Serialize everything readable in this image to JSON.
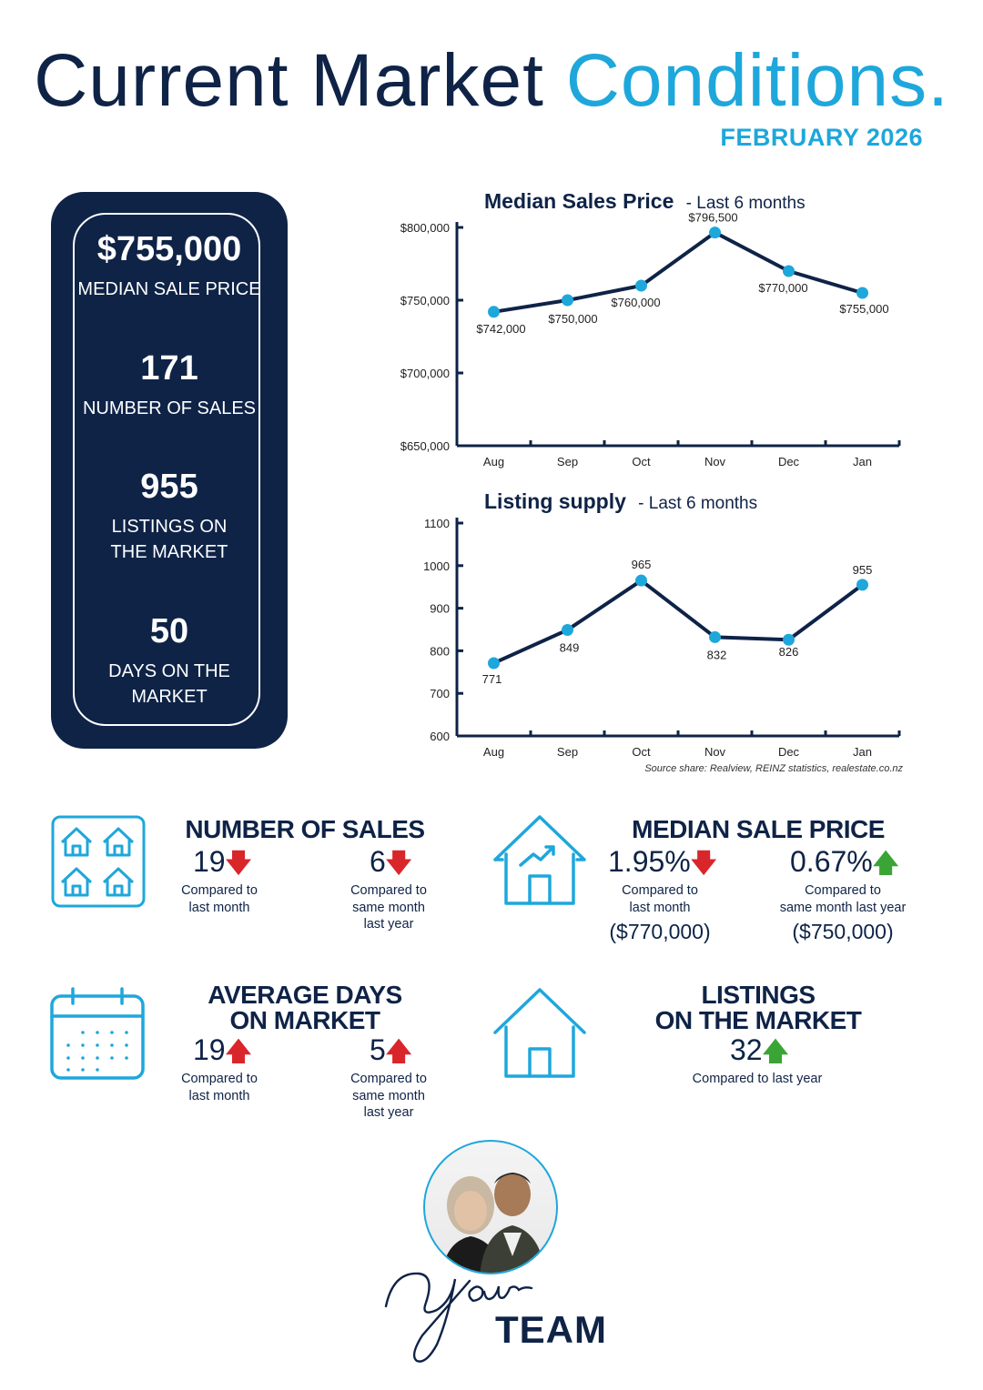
{
  "header": {
    "title_part1": "Current Market",
    "title_part2": "Conditions.",
    "subtitle": "FEBRUARY 2026"
  },
  "summary": {
    "median_price_value": "$755,000",
    "median_price_label": "MEDIAN SALE PRICE",
    "sales_value": "171",
    "sales_label": "NUMBER OF SALES",
    "listings_value": "955",
    "listings_label": "LISTINGS ON THE MARKET",
    "days_value": "50",
    "days_label": "DAYS ON THE MARKET"
  },
  "chart_data": [
    {
      "type": "line",
      "title": "Median Sales Price",
      "subtitle": "- Last 6 months",
      "categories": [
        "Aug",
        "Sep",
        "Oct",
        "Nov",
        "Dec",
        "Jan"
      ],
      "values": [
        742000,
        750000,
        760000,
        796500,
        770000,
        755000
      ],
      "data_labels": [
        "$742,000",
        "$750,000",
        "$760,000",
        "$796,500",
        "$770,000",
        "$755,000"
      ],
      "ylim": [
        650000,
        800000
      ],
      "yticks": [
        650000,
        700000,
        750000,
        800000
      ],
      "ytick_labels": [
        "$650,000",
        "$700,000",
        "$750,000",
        "$800,000"
      ],
      "grid": false,
      "color": "#1ea7db",
      "line_color": "#0f2347"
    },
    {
      "type": "line",
      "title": "Listing supply",
      "subtitle": "- Last 6 months",
      "categories": [
        "Aug",
        "Sep",
        "Oct",
        "Nov",
        "Dec",
        "Jan"
      ],
      "values": [
        771,
        849,
        965,
        832,
        826,
        955
      ],
      "data_labels": [
        "771",
        "849",
        "965",
        "832",
        "826",
        "955"
      ],
      "ylim": [
        600,
        1100
      ],
      "yticks": [
        600,
        700,
        800,
        900,
        1000,
        1100
      ],
      "ytick_labels": [
        "600",
        "700",
        "800",
        "900",
        "1000",
        "1100"
      ],
      "grid": false,
      "color": "#1ea7db",
      "line_color": "#0f2347"
    }
  ],
  "source": "Source share: Realview, REINZ statistics, realestate.co.nz",
  "blocks": {
    "sales": {
      "title": "NUMBER OF SALES",
      "month_value": "19",
      "month_arrow": "down",
      "month_caption": [
        "Compared to",
        "last month"
      ],
      "year_value": "6",
      "year_arrow": "down",
      "year_caption": [
        "Compared to",
        "same month",
        "last year"
      ],
      "icon": "houses-grid-icon"
    },
    "price": {
      "title": "MEDIAN SALE PRICE",
      "month_value": "1.95%",
      "month_arrow": "down",
      "month_caption": [
        "Compared to",
        "last month"
      ],
      "month_prev": "($770,000)",
      "year_value": "0.67%",
      "year_arrow": "up",
      "year_caption": [
        "Compared to",
        "same month last year"
      ],
      "year_prev": "($750,000)",
      "icon": "house-trend-icon"
    },
    "days": {
      "title_line1": "AVERAGE DAYS",
      "title_line2": "ON MARKET",
      "month_value": "19",
      "month_arrow": "up",
      "month_caption": [
        "Compared to",
        "last month"
      ],
      "year_value": "5",
      "year_arrow": "up",
      "year_caption": [
        "Compared to",
        "same month",
        "last year"
      ],
      "icon": "calendar-icon"
    },
    "listings": {
      "title_line1": "LISTINGS",
      "title_line2": "ON THE MARKET",
      "year_value": "32",
      "year_arrow": "up",
      "year_caption": "Compared to last year",
      "icon": "house-icon"
    }
  },
  "footer": {
    "script_word": "Your",
    "team_word": "TEAM"
  },
  "colors": {
    "navy": "#0f2347",
    "accent": "#1ea7db",
    "down": "#d9262b",
    "up_green": "#3aa535"
  }
}
